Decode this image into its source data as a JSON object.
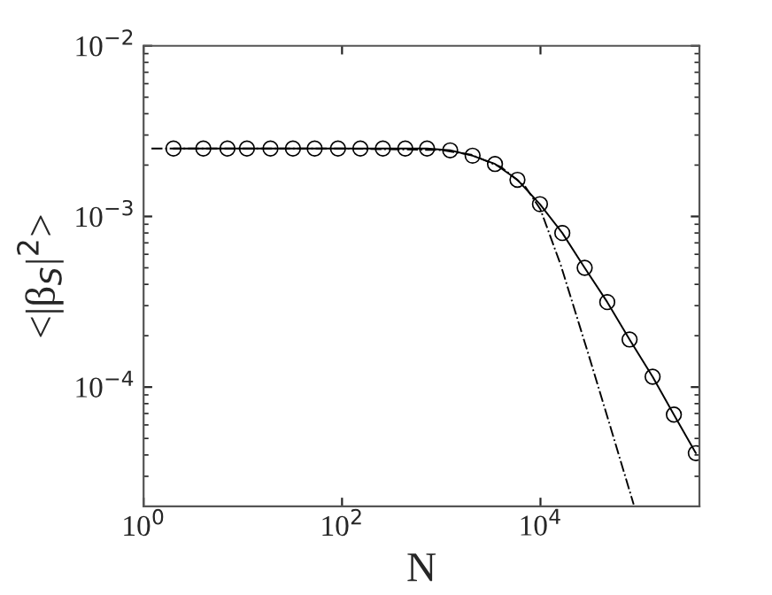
{
  "chart_data": {
    "type": "line",
    "xlabel": "N",
    "ylabel": "<|β$_{S}$|$^{2}$>",
    "log": "xy",
    "grid": false,
    "legend": false,
    "xlim": [
      1,
      400000
    ],
    "ylim": [
      2e-05,
      0.01
    ],
    "xticks": [
      {
        "value": 1,
        "label": "10$^{0}$"
      },
      {
        "value": 100,
        "label": "10$^{2}$"
      },
      {
        "value": 10000,
        "label": "10$^{4}$"
      }
    ],
    "yticks": [
      {
        "value": 0.0001,
        "label": "10$^{−4}$"
      },
      {
        "value": 0.001,
        "label": "10$^{−3}$"
      },
      {
        "value": 0.01,
        "label": "10$^{−2}$"
      }
    ],
    "series": [
      {
        "color": "#000000",
        "marker": "circle",
        "line_style": "solid",
        "x": [
          2,
          4,
          7,
          11,
          19,
          32,
          53,
          91,
          153,
          258,
          434,
          719,
          1230,
          2070,
          3480,
          5860,
          9880,
          16600,
          27900,
          47100,
          79100,
          135000,
          221000,
          368000
        ],
        "values": [
          0.0025,
          0.0025,
          0.0025,
          0.0025,
          0.0025,
          0.0025,
          0.0025,
          0.0025,
          0.0025,
          0.0025,
          0.0025,
          0.0025,
          0.00244,
          0.00227,
          0.00203,
          0.00164,
          0.00118,
          0.0008,
          0.0005,
          0.000315,
          0.00019,
          0.000115,
          6.9e-05,
          4.1e-05
        ]
      },
      {
        "color": "#000000",
        "marker": "none",
        "line_style": "dashdot",
        "x": [
          1.2,
          100,
          1000,
          2000,
          4000,
          7000,
          10000,
          16000,
          30000,
          50000,
          87000
        ],
        "values": [
          0.0025,
          0.0025,
          0.00245,
          0.0023,
          0.00195,
          0.0015,
          0.0011,
          0.00052,
          0.00016,
          6e-05,
          2.05e-05
        ]
      }
    ]
  }
}
